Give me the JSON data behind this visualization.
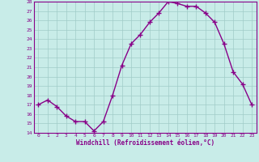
{
  "x": [
    0,
    1,
    2,
    3,
    4,
    5,
    6,
    7,
    8,
    9,
    10,
    11,
    12,
    13,
    14,
    15,
    16,
    17,
    18,
    19,
    20,
    21,
    22,
    23
  ],
  "y": [
    17.0,
    17.5,
    16.8,
    15.8,
    15.2,
    15.2,
    14.2,
    15.2,
    18.0,
    21.2,
    23.5,
    24.5,
    25.8,
    26.8,
    28.0,
    27.8,
    27.5,
    27.5,
    26.8,
    25.8,
    23.5,
    20.5,
    19.2,
    17.0
  ],
  "ylim": [
    14,
    28
  ],
  "yticks": [
    14,
    15,
    16,
    17,
    18,
    19,
    20,
    21,
    22,
    23,
    24,
    25,
    26,
    27,
    28
  ],
  "xtick_labels": [
    "0",
    "1",
    "2",
    "3",
    "4",
    "5",
    "6",
    "7",
    "8",
    "9",
    "10",
    "11",
    "12",
    "13",
    "14",
    "15",
    "16",
    "17",
    "18",
    "19",
    "20",
    "21",
    "22",
    "23"
  ],
  "xlabel": "Windchill (Refroidissement éolien,°C)",
  "line_color": "#880088",
  "marker": "+",
  "marker_size": 5,
  "bg_color": "#c8ece8",
  "grid_color": "#a0ccc8",
  "axis_color": "#880088",
  "tick_color": "#880088",
  "line_width": 1.0,
  "border_color": "#880088"
}
